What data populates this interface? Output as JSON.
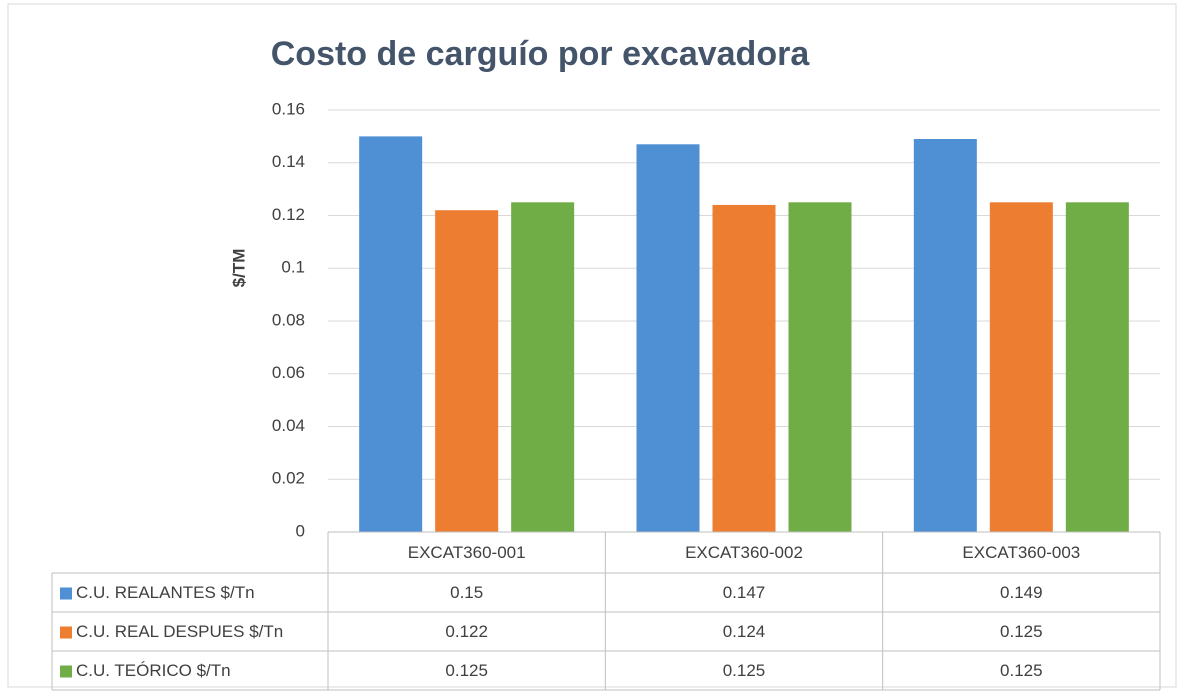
{
  "chart_data": {
    "type": "bar",
    "title": "Costo de carguío por excavadora",
    "y_label": "$/TM",
    "categories": [
      "EXCAT360-001",
      "EXCAT360-002",
      "EXCAT360-003"
    ],
    "series": [
      {
        "name": "C.U. REALANTES $/Tn",
        "color": "#4f8fd4",
        "values": [
          0.15,
          0.147,
          0.149
        ]
      },
      {
        "name": "C.U. REAL DESPUES $/Tn",
        "color": "#ed7d31",
        "values": [
          0.122,
          0.124,
          0.125
        ]
      },
      {
        "name": "C.U. TEÓRICO $/Tn",
        "color": "#70ad47",
        "values": [
          0.125,
          0.125,
          0.125
        ]
      }
    ],
    "ylim": [
      0,
      0.16
    ],
    "yticks": [
      0,
      0.02,
      0.04,
      0.06,
      0.08,
      0.1,
      0.12,
      0.14,
      0.16
    ],
    "grid": true
  }
}
